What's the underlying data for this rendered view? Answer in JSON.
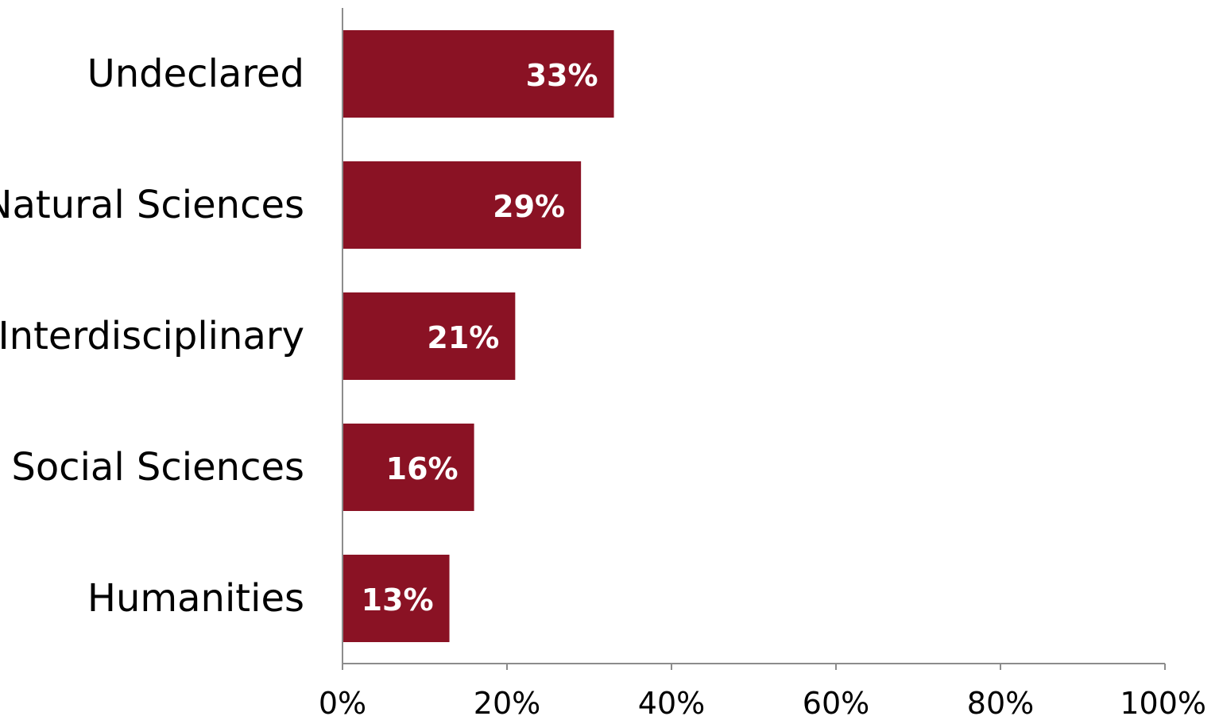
{
  "chart_data": {
    "type": "bar",
    "orientation": "horizontal",
    "title": "",
    "xlabel": "",
    "ylabel": "",
    "categories": [
      "Undeclared",
      "Natural Sciences",
      "Interdisciplinary",
      "Social Sciences",
      "Humanities"
    ],
    "values": [
      33,
      29,
      21,
      16,
      13
    ],
    "data_labels": [
      "33%",
      "29%",
      "21%",
      "16%",
      "13%"
    ],
    "xlim": [
      0,
      100
    ],
    "x_ticks": [
      0,
      20,
      40,
      60,
      80,
      100
    ],
    "x_tick_labels": [
      "0%",
      "20%",
      "40%",
      "60%",
      "80%",
      "100%"
    ],
    "grid": false,
    "legend": "none",
    "bar_color": "#8a1224",
    "axis_color": "#8c8c8c",
    "data_label_color": "#ffffff"
  }
}
